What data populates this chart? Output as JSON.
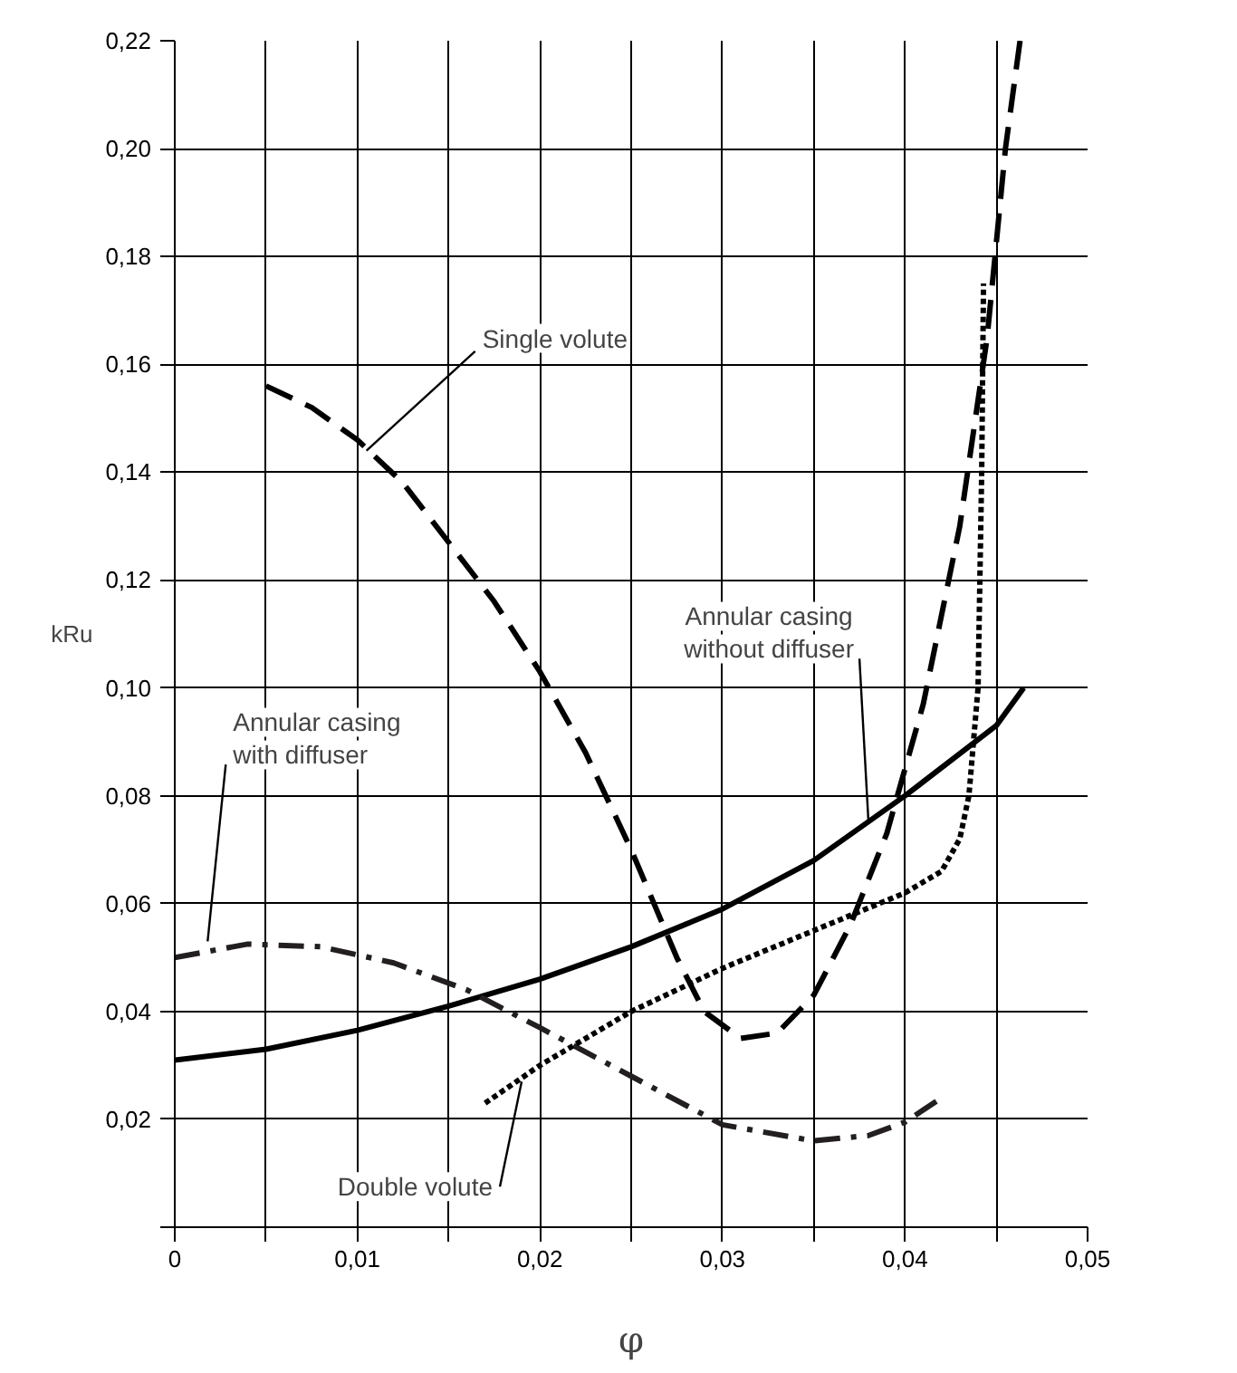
{
  "chart_data": {
    "type": "line",
    "xlabel": "φ",
    "ylabel": "kRu",
    "xlim": [
      0,
      0.05
    ],
    "ylim": [
      0,
      0.22
    ],
    "xticks": [
      0,
      {
        "value": 0.005,
        "label": null
      },
      {
        "value": 0.01,
        "label": "0,01"
      },
      {
        "value": 0.015,
        "label": null
      },
      {
        "value": 0.02,
        "label": "0,02"
      },
      {
        "value": 0.025,
        "label": null
      },
      {
        "value": 0.03,
        "label": "0,03"
      },
      {
        "value": 0.035,
        "label": null
      },
      {
        "value": 0.04,
        "label": "0,04"
      },
      {
        "value": 0.045,
        "label": null
      },
      {
        "value": 0.05,
        "label": "0,05"
      }
    ],
    "yticks": [
      {
        "value": 0,
        "label": null
      },
      {
        "value": 0.02,
        "label": "0,02"
      },
      {
        "value": 0.04,
        "label": "0,04"
      },
      {
        "value": 0.06,
        "label": "0,06"
      },
      {
        "value": 0.08,
        "label": "0,08"
      },
      {
        "value": 0.1,
        "label": "0,10"
      },
      {
        "value": 0.12,
        "label": "0,12"
      },
      {
        "value": 0.14,
        "label": "0,14"
      },
      {
        "value": 0.16,
        "label": "0,16"
      },
      {
        "value": 0.18,
        "label": "0,18"
      },
      {
        "value": 0.2,
        "label": "0,20"
      },
      {
        "value": 0.22,
        "label": "0,22"
      }
    ],
    "grid": true,
    "series": [
      {
        "color": "#000000",
        "line_style": "dashed",
        "x": [
          0.005,
          0.0075,
          0.01,
          0.0125,
          0.015,
          0.0175,
          0.02,
          0.0225,
          0.025,
          0.0275,
          0.029,
          0.031,
          0.033,
          0.035,
          0.037,
          0.039,
          0.041,
          0.043,
          0.0445,
          0.0455,
          0.0463
        ],
        "values": [
          0.156,
          0.152,
          0.146,
          0.138,
          0.127,
          0.116,
          0.103,
          0.088,
          0.07,
          0.05,
          0.04,
          0.035,
          0.036,
          0.043,
          0.056,
          0.073,
          0.097,
          0.13,
          0.165,
          0.2,
          0.22
        ]
      },
      {
        "color": "#000000",
        "line_style": "solid",
        "x": [
          0,
          0.005,
          0.01,
          0.015,
          0.02,
          0.025,
          0.03,
          0.035,
          0.04,
          0.045,
          0.0465
        ],
        "values": [
          0.031,
          0.033,
          0.0365,
          0.041,
          0.046,
          0.052,
          0.059,
          0.068,
          0.08,
          0.093,
          0.1
        ]
      },
      {
        "color": "#231f20",
        "line_style": "dashdot",
        "x": [
          0,
          0.004,
          0.008,
          0.012,
          0.016,
          0.02,
          0.025,
          0.03,
          0.035,
          0.038,
          0.04,
          0.042
        ],
        "values": [
          0.05,
          0.0525,
          0.052,
          0.049,
          0.044,
          0.037,
          0.028,
          0.019,
          0.016,
          0.017,
          0.0195,
          0.024
        ]
      },
      {
        "color": "#000000",
        "line_style": "dotted",
        "x": [
          0.017,
          0.02,
          0.025,
          0.03,
          0.035,
          0.04,
          0.042,
          0.043,
          0.0435,
          0.044,
          0.0442,
          0.0443
        ],
        "values": [
          0.023,
          0.03,
          0.04,
          0.048,
          0.055,
          0.062,
          0.066,
          0.072,
          0.08,
          0.1,
          0.14,
          0.175
        ]
      }
    ],
    "annotations": [
      {
        "text": "Single volute",
        "x": 0.0105,
        "y": 0.144
      },
      {
        "text": "Annular casing\nwithout diffuser",
        "x": 0.038,
        "y": 0.075
      },
      {
        "text": "Annular casing\nwith diffuser",
        "x": 0.0018,
        "y": 0.053
      },
      {
        "text": "Double volute",
        "x": 0.019,
        "y": 0.027
      }
    ]
  }
}
